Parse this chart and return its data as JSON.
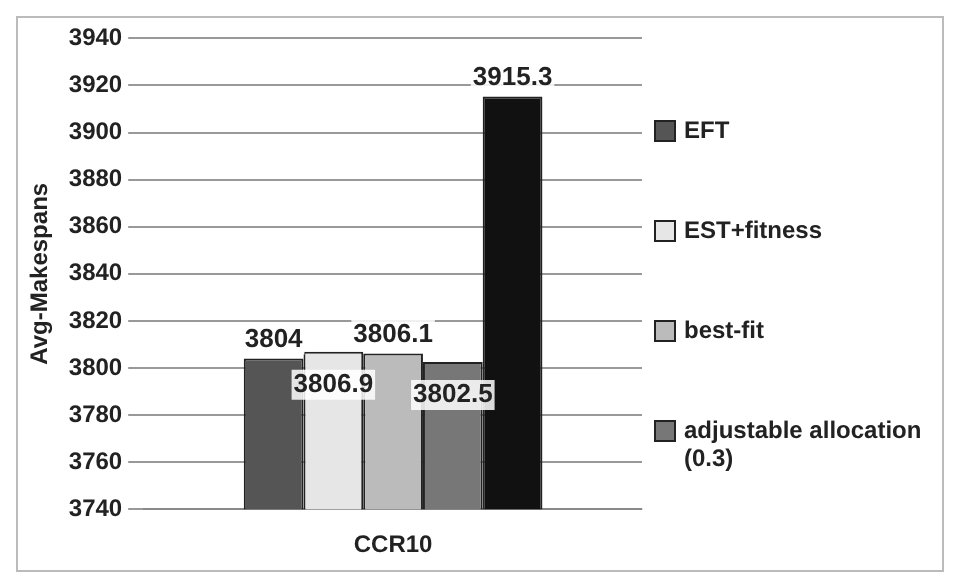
{
  "chart_data": {
    "type": "bar",
    "ylabel": "Avg-Makespans",
    "categories": [
      "CCR10"
    ],
    "series": [
      {
        "name": "EFT",
        "color": "#555555",
        "values": [
          3804
        ]
      },
      {
        "name": "EST+fitness",
        "color": "#e6e6e6",
        "values": [
          3806.9
        ]
      },
      {
        "name": "best-fit",
        "color": "#bbbbbb",
        "values": [
          3806.1
        ]
      },
      {
        "name": "adjustable allocation (0.3)",
        "color": "#777777",
        "values": [
          3802.5
        ]
      },
      {
        "color": "#111111",
        "values": [
          3915.3
        ]
      }
    ],
    "ylim": [
      3740,
      3940
    ],
    "yticks": [
      3740,
      3760,
      3780,
      3800,
      3820,
      3840,
      3860,
      3880,
      3900,
      3920,
      3940
    ],
    "grid": "y",
    "legend": "right",
    "data_labels": true
  }
}
